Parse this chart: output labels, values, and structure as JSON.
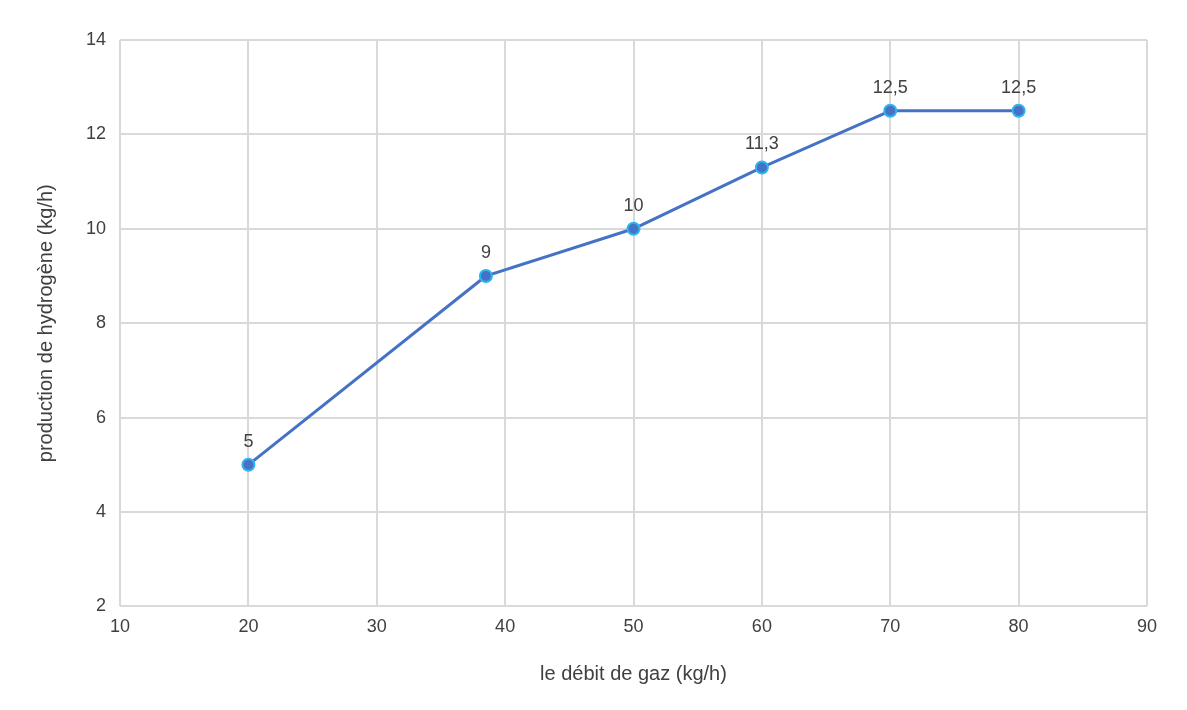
{
  "chart_data": {
    "type": "line",
    "xlabel": "le débit de gaz (kg/h)",
    "ylabel": "production de hydrogène (kg/h)",
    "x": [
      20,
      38.5,
      50,
      60,
      70,
      80
    ],
    "series": [
      {
        "color": "#4472c4",
        "values": [
          5,
          9,
          10,
          11.3,
          12.5,
          12.5
        ],
        "value_labels": [
          "5",
          "9",
          "10",
          "11,3",
          "12,5",
          "12,5"
        ]
      }
    ],
    "xlim": [
      10,
      90
    ],
    "xticks": [
      10,
      20,
      30,
      40,
      50,
      60,
      70,
      80,
      90
    ],
    "ylim": [
      2,
      14
    ],
    "yticks": [
      2,
      4,
      6,
      8,
      10,
      12,
      14
    ],
    "grid": true,
    "marker": "circle",
    "line_style": "solid",
    "legend": false
  }
}
